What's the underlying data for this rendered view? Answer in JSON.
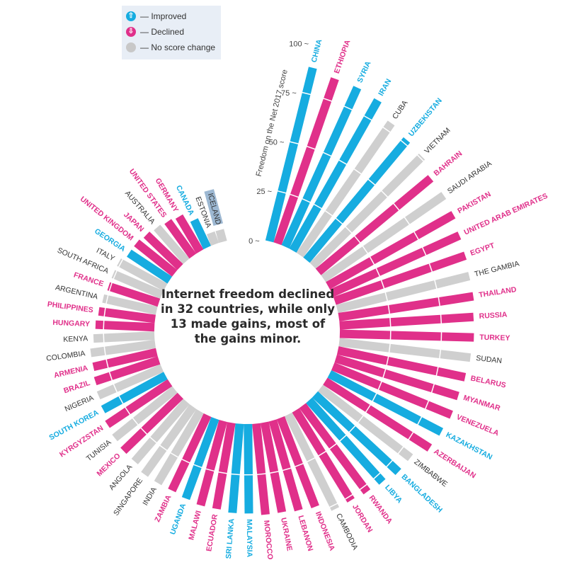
{
  "legend": {
    "items": [
      {
        "key": "improved",
        "label": "— Improved",
        "icon": "arrow-up-icon",
        "glyph": "⇧",
        "color": "#16ace0"
      },
      {
        "key": "declined",
        "label": "— Declined",
        "icon": "arrow-down-icon",
        "glyph": "⇩",
        "color": "#e0308a"
      },
      {
        "key": "nochange",
        "label": "— No score change",
        "icon": "circle-icon",
        "glyph": "",
        "color": "#c8c8c8"
      }
    ]
  },
  "center_text": "Internet freedom declined in 32 countries, while only 13 made gains, most of the gains minor.",
  "colors": {
    "improved": "#16ace0",
    "declined": "#e0308a",
    "nochange": "#cfcfcf",
    "nochange_label": "#333333",
    "highlight": "#9db8d2"
  },
  "chart_data": {
    "type": "radial-bar",
    "title": "Internet freedom declined in 32 countries, while only 13 made gains, most of the gains minor.",
    "axis_label": "Freedom on the Net 2017 score",
    "ylim": [
      0,
      100
    ],
    "ticks": [
      0,
      25,
      50,
      75,
      100
    ],
    "tick_labels": [
      "0",
      "25",
      "50",
      "75",
      "100"
    ],
    "order": "clockwise, descending score",
    "segment_lines_at": [
      25,
      50,
      75
    ],
    "legend": [
      "Improved",
      "Declined",
      "No score change"
    ],
    "highlighted": "ICELAND",
    "countries": [
      {
        "name": "CHINA",
        "score": 88,
        "change": "improved"
      },
      {
        "name": "ETHIOPIA",
        "score": 86,
        "change": "declined"
      },
      {
        "name": "SYRIA",
        "score": 86,
        "change": "improved"
      },
      {
        "name": "IRAN",
        "score": 85,
        "change": "improved"
      },
      {
        "name": "CUBA",
        "score": 79,
        "change": "nochange"
      },
      {
        "name": "UZBEKISTAN",
        "score": 77,
        "change": "improved"
      },
      {
        "name": "VIETNAM",
        "score": 76,
        "change": "nochange"
      },
      {
        "name": "BAHRAIN",
        "score": 72,
        "change": "declined"
      },
      {
        "name": "SAUDI ARABIA",
        "score": 72,
        "change": "nochange"
      },
      {
        "name": "PAKISTAN",
        "score": 71,
        "change": "declined"
      },
      {
        "name": "UNITED ARAB EMIRATES",
        "score": 69,
        "change": "declined"
      },
      {
        "name": "EGYPT",
        "score": 68,
        "change": "declined"
      },
      {
        "name": "THE GAMBIA",
        "score": 67,
        "change": "nochange"
      },
      {
        "name": "THAILAND",
        "score": 67,
        "change": "declined"
      },
      {
        "name": "RUSSIA",
        "score": 66,
        "change": "declined"
      },
      {
        "name": "TURKEY",
        "score": 66,
        "change": "declined"
      },
      {
        "name": "SUDAN",
        "score": 65,
        "change": "nochange"
      },
      {
        "name": "BELARUS",
        "score": 64,
        "change": "declined"
      },
      {
        "name": "MYANMAR",
        "score": 63,
        "change": "declined"
      },
      {
        "name": "VENEZUELA",
        "score": 63,
        "change": "declined"
      },
      {
        "name": "KAZAKHSTAN",
        "score": 62,
        "change": "improved"
      },
      {
        "name": "AZERBAIJAN",
        "score": 61,
        "change": "declined"
      },
      {
        "name": "ZIMBABWE",
        "score": 56,
        "change": "nochange"
      },
      {
        "name": "BANGLADESH",
        "score": 56,
        "change": "improved"
      },
      {
        "name": "LIBYA",
        "score": 54,
        "change": "improved"
      },
      {
        "name": "RWANDA",
        "score": 53,
        "change": "declined"
      },
      {
        "name": "JORDAN",
        "score": 52,
        "change": "declined"
      },
      {
        "name": "CAMBODIA",
        "score": 52,
        "change": "nochange"
      },
      {
        "name": "INDONESIA",
        "score": 47,
        "change": "declined"
      },
      {
        "name": "LEBANON",
        "score": 46,
        "change": "declined"
      },
      {
        "name": "UKRAINE",
        "score": 45,
        "change": "declined"
      },
      {
        "name": "MOROCCO",
        "score": 45,
        "change": "declined"
      },
      {
        "name": "MALAYSIA",
        "score": 44,
        "change": "improved"
      },
      {
        "name": "SRI LANKA",
        "score": 44,
        "change": "improved"
      },
      {
        "name": "ECUADOR",
        "score": 43,
        "change": "declined"
      },
      {
        "name": "MALAWI",
        "score": 43,
        "change": "declined"
      },
      {
        "name": "UGANDA",
        "score": 42,
        "change": "improved"
      },
      {
        "name": "ZAMBIA",
        "score": 41,
        "change": "declined"
      },
      {
        "name": "INDIA",
        "score": 41,
        "change": "nochange"
      },
      {
        "name": "SINGAPORE",
        "score": 41,
        "change": "nochange"
      },
      {
        "name": "ANGOLA",
        "score": 39,
        "change": "nochange"
      },
      {
        "name": "MEXICO",
        "score": 39,
        "change": "declined"
      },
      {
        "name": "TUNISIA",
        "score": 38,
        "change": "nochange"
      },
      {
        "name": "KYRGYZSTAN",
        "score": 37,
        "change": "declined"
      },
      {
        "name": "SOUTH KOREA",
        "score": 35,
        "change": "improved"
      },
      {
        "name": "NIGERIA",
        "score": 34,
        "change": "nochange"
      },
      {
        "name": "BRAZIL",
        "score": 33,
        "change": "declined"
      },
      {
        "name": "ARMENIA",
        "score": 32,
        "change": "declined"
      },
      {
        "name": "COLOMBIA",
        "score": 32,
        "change": "nochange"
      },
      {
        "name": "KENYA",
        "score": 30,
        "change": "nochange"
      },
      {
        "name": "HUNGARY",
        "score": 29,
        "change": "declined"
      },
      {
        "name": "PHILIPPINES",
        "score": 28,
        "change": "declined"
      },
      {
        "name": "ARGENTINA",
        "score": 27,
        "change": "nochange"
      },
      {
        "name": "FRANCE",
        "score": 26,
        "change": "declined"
      },
      {
        "name": "SOUTH AFRICA",
        "score": 26,
        "change": "nochange"
      },
      {
        "name": "ITALY",
        "score": 26,
        "change": "nochange"
      },
      {
        "name": "GEORGIA",
        "score": 24,
        "change": "improved"
      },
      {
        "name": "UNITED KINGDOM",
        "score": 24,
        "change": "declined"
      },
      {
        "name": "JAPAN",
        "score": 23,
        "change": "declined"
      },
      {
        "name": "AUSTRALIA",
        "score": 22,
        "change": "nochange"
      },
      {
        "name": "UNITED STATES",
        "score": 21,
        "change": "declined"
      },
      {
        "name": "GERMANY",
        "score": 20,
        "change": "declined"
      },
      {
        "name": "CANADA",
        "score": 15,
        "change": "improved"
      },
      {
        "name": "ESTONIA",
        "score": 6,
        "change": "nochange"
      },
      {
        "name": "ICELAND",
        "score": 6,
        "change": "nochange"
      }
    ]
  }
}
